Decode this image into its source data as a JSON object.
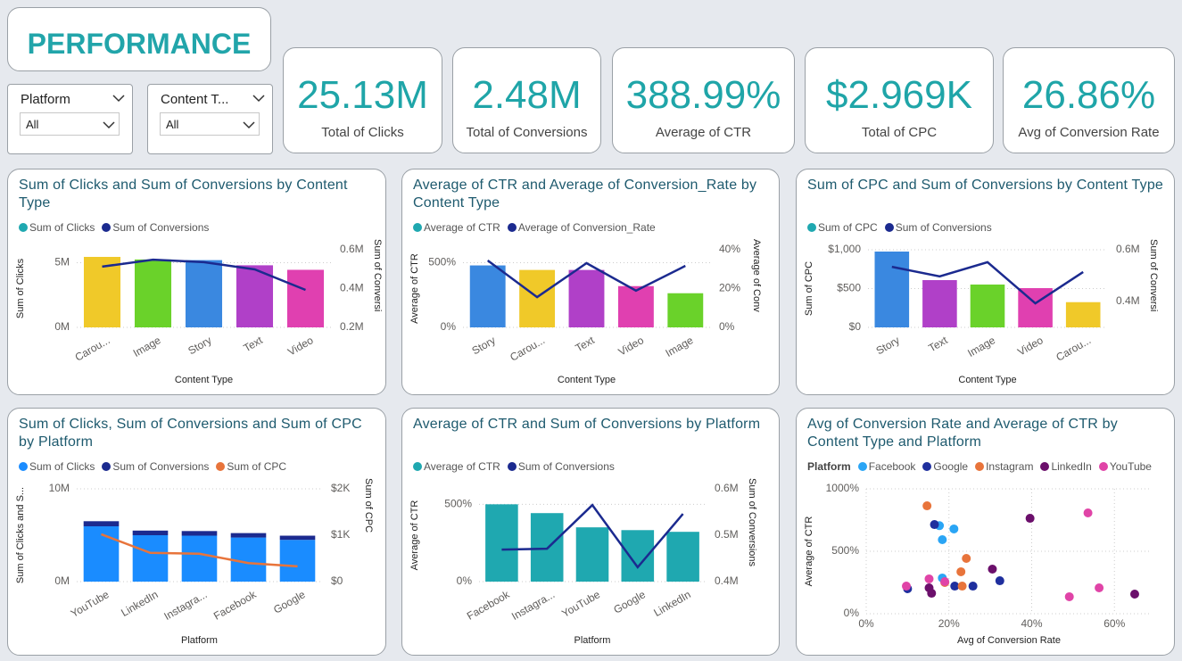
{
  "header": {
    "title": "PERFORMANCE"
  },
  "slicers": [
    {
      "label": "Platform",
      "value": "All"
    },
    {
      "label": "Content T...",
      "value": "All"
    }
  ],
  "cards": [
    {
      "value": "25.13M",
      "label": "Total of Clicks"
    },
    {
      "value": "2.48M",
      "label": "Total of Conversions"
    },
    {
      "value": "388.99%",
      "label": "Average of CTR"
    },
    {
      "value": "$2.969K",
      "label": "Total of CPC"
    },
    {
      "value": "26.86%",
      "label": "Avg of Conversion Rate"
    }
  ],
  "chart_data": [
    {
      "type": "combo",
      "title": "Sum of Clicks and Sum of Conversions by Content Type",
      "x_label": "Content Type",
      "y_label": "Sum of Clicks",
      "y2_label": "Sum of Conversi",
      "categories": [
        "Carou...",
        "Image",
        "Story",
        "Text",
        "Video"
      ],
      "series": [
        {
          "name": "Sum of Clicks",
          "color": "#1fa8b0",
          "mark": "bar",
          "colors": [
            "#f0c929",
            "#6ad22a",
            "#3a88e0",
            "#b040c8",
            "#e040b0"
          ],
          "values": [
            5450000,
            5250000,
            5200000,
            4800000,
            4450000
          ]
        },
        {
          "name": "Sum of Conversions",
          "color": "#1b2a8f",
          "mark": "line",
          "axis": "y2",
          "values": [
            513000,
            549000,
            536000,
            499000,
            393000
          ]
        }
      ],
      "ylim": [
        0,
        6000000
      ],
      "yticks": [
        {
          "value": 0,
          "label": "0M"
        },
        {
          "value": 5000000,
          "label": "5M"
        }
      ],
      "y2lim": [
        200000,
        600000
      ],
      "y2ticks": [
        {
          "value": 200000,
          "label": "0.2M"
        },
        {
          "value": 400000,
          "label": "0.4M"
        },
        {
          "value": 600000,
          "label": "0.6M"
        }
      ],
      "grid": true
    },
    {
      "type": "combo",
      "title": "Average of CTR and Average of Conversion_Rate by Content Type",
      "x_label": "Content Type",
      "y_label": "Average of CTR",
      "y2_label": "Average of Conv",
      "categories": [
        "Story",
        "Carou...",
        "Text",
        "Video",
        "Image"
      ],
      "series": [
        {
          "name": "Average of CTR",
          "color": "#1fa8b0",
          "mark": "bar",
          "colors": [
            "#3a88e0",
            "#f0c929",
            "#b040c8",
            "#e040b0",
            "#6ad22a"
          ],
          "values": [
            479,
            444,
            444,
            319,
            264
          ]
        },
        {
          "name": "Average of Conversion_Rate",
          "color": "#1b2a8f",
          "mark": "line",
          "axis": "y2",
          "values": [
            34.5,
            15.6,
            33.1,
            18.9,
            31.7
          ]
        }
      ],
      "ylim": [
        0,
        600
      ],
      "yticks": [
        {
          "value": 0,
          "label": "0%"
        },
        {
          "value": 500,
          "label": "500%"
        }
      ],
      "y2lim": [
        0,
        40
      ],
      "y2ticks": [
        {
          "value": 0,
          "label": "0%"
        },
        {
          "value": 20,
          "label": "20%"
        },
        {
          "value": 40,
          "label": "40%"
        }
      ],
      "grid": true
    },
    {
      "type": "combo",
      "title": "Sum of CPC and Sum of Conversions by Content Type",
      "x_label": "Content Type",
      "y_label": "Sum of CPC",
      "y2_label": "Sum of Conversi",
      "categories": [
        "Story",
        "Text",
        "Image",
        "Video",
        "Carou..."
      ],
      "series": [
        {
          "name": "Sum of CPC",
          "color": "#1fa8b0",
          "mark": "bar",
          "colors": [
            "#3a88e0",
            "#b040c8",
            "#6ad22a",
            "#e040b0",
            "#f0c929"
          ],
          "values": [
            977,
            609,
            552,
            506,
            325
          ]
        },
        {
          "name": "Sum of Conversions",
          "color": "#1b2a8f",
          "mark": "line",
          "axis": "y2",
          "values": [
            534000,
            497000,
            552000,
            393000,
            514000
          ]
        }
      ],
      "ylim": [
        0,
        1000
      ],
      "yticks": [
        {
          "value": 0,
          "label": "$0"
        },
        {
          "value": 500,
          "label": "$500"
        },
        {
          "value": 1000,
          "label": "$1,000"
        }
      ],
      "y2lim": [
        300000,
        600000
      ],
      "y2ticks": [
        {
          "value": 400000,
          "label": "0.4M"
        },
        {
          "value": 600000,
          "label": "0.6M"
        }
      ],
      "grid": true
    },
    {
      "type": "combo",
      "title": "Sum of Clicks, Sum of Conversions and Sum of CPC by Platform",
      "x_label": "Platform",
      "y_label": "Sum of Clicks and S...",
      "y2_label": "Sum of CPC",
      "stacked": true,
      "categories": [
        "YouTube",
        "LinkedIn",
        "Instagra...",
        "Facebook",
        "Google"
      ],
      "series": [
        {
          "name": "Sum of Clicks",
          "color": "#1a8cff",
          "mark": "bar",
          "values": [
            5960000,
            5000000,
            4950000,
            4750000,
            4500000
          ]
        },
        {
          "name": "Sum of Conversions",
          "color": "#1b2a8f",
          "mark": "bar",
          "values": [
            550000,
            500000,
            500000,
            480000,
            450000
          ]
        },
        {
          "name": "Sum of CPC",
          "color": "#e8743b",
          "mark": "line",
          "axis": "y2",
          "values": [
            1020,
            620,
            600,
            400,
            329
          ]
        }
      ],
      "ylim": [
        0,
        10000000
      ],
      "yticks": [
        {
          "value": 0,
          "label": "0M"
        },
        {
          "value": 10000000,
          "label": "10M"
        }
      ],
      "y2lim": [
        0,
        2000
      ],
      "y2ticks": [
        {
          "value": 0,
          "label": "$0"
        },
        {
          "value": 1000,
          "label": "$1K"
        },
        {
          "value": 2000,
          "label": "$2K"
        }
      ],
      "grid": true
    },
    {
      "type": "combo",
      "title": "Average of CTR and Sum of Conversions by Platform",
      "x_label": "Platform",
      "y_label": "Average of CTR",
      "y2_label": "Sum of Conversions",
      "categories": [
        "Facebook",
        "Instagra...",
        "YouTube",
        "Google",
        "LinkedIn"
      ],
      "series": [
        {
          "name": "Average of CTR",
          "color": "#1fa8b0",
          "mark": "bar",
          "values": [
            500,
            443,
            351,
            333,
            322
          ]
        },
        {
          "name": "Sum of Conversions",
          "color": "#1b2a8f",
          "mark": "line",
          "axis": "y2",
          "values": [
            469000,
            471000,
            565000,
            431000,
            546000
          ]
        }
      ],
      "ylim": [
        0,
        600
      ],
      "yticks": [
        {
          "value": 0,
          "label": "0%"
        },
        {
          "value": 500,
          "label": "500%"
        }
      ],
      "y2lim": [
        400000,
        600000
      ],
      "y2ticks": [
        {
          "value": 400000,
          "label": "0.4M"
        },
        {
          "value": 500000,
          "label": "0.5M"
        },
        {
          "value": 600000,
          "label": "0.6M"
        }
      ],
      "grid": true
    },
    {
      "type": "scatter",
      "title": "Avg of Conversion Rate and Average of CTR by Content Type and Platform",
      "x_label": "Avg of Conversion Rate",
      "y_label": "Average of CTR",
      "legend_title": "Platform",
      "series": [
        {
          "name": "Facebook",
          "color": "#2aa5f5",
          "x": [
            17.7,
            18.4,
            21.2,
            18.4
          ],
          "y": [
            705,
            593,
            679,
            286
          ]
        },
        {
          "name": "Google",
          "color": "#1f2f9e",
          "x": [
            10.0,
            16.5,
            21.4,
            25.8,
            32.3
          ],
          "y": [
            200,
            714,
            221,
            221,
            264
          ]
        },
        {
          "name": "Instagram",
          "color": "#e8743b",
          "x": [
            14.7,
            24.2,
            22.9,
            23.2,
            19.0
          ],
          "y": [
            864,
            443,
            336,
            221,
            250
          ]
        },
        {
          "name": "LinkedIn",
          "color": "#6b0f6b",
          "x": [
            39.6,
            30.5,
            15.8,
            64.9,
            15.2
          ],
          "y": [
            764,
            357,
            164,
            157,
            207
          ]
        },
        {
          "name": "YouTube",
          "color": "#e044a7",
          "x": [
            53.6,
            56.3,
            49.1,
            9.7,
            15.2,
            19.0
          ],
          "y": [
            807,
            207,
            136,
            221,
            279,
            257
          ]
        }
      ],
      "xlim": [
        0,
        69
      ],
      "xticks": [
        {
          "value": 0,
          "label": "0%"
        },
        {
          "value": 20,
          "label": "20%"
        },
        {
          "value": 40,
          "label": "40%"
        },
        {
          "value": 60,
          "label": "60%"
        }
      ],
      "ylim": [
        0,
        1000
      ],
      "yticks": [
        {
          "value": 0,
          "label": "0%"
        },
        {
          "value": 500,
          "label": "500%"
        },
        {
          "value": 1000,
          "label": "1000%"
        }
      ],
      "grid": true
    }
  ]
}
